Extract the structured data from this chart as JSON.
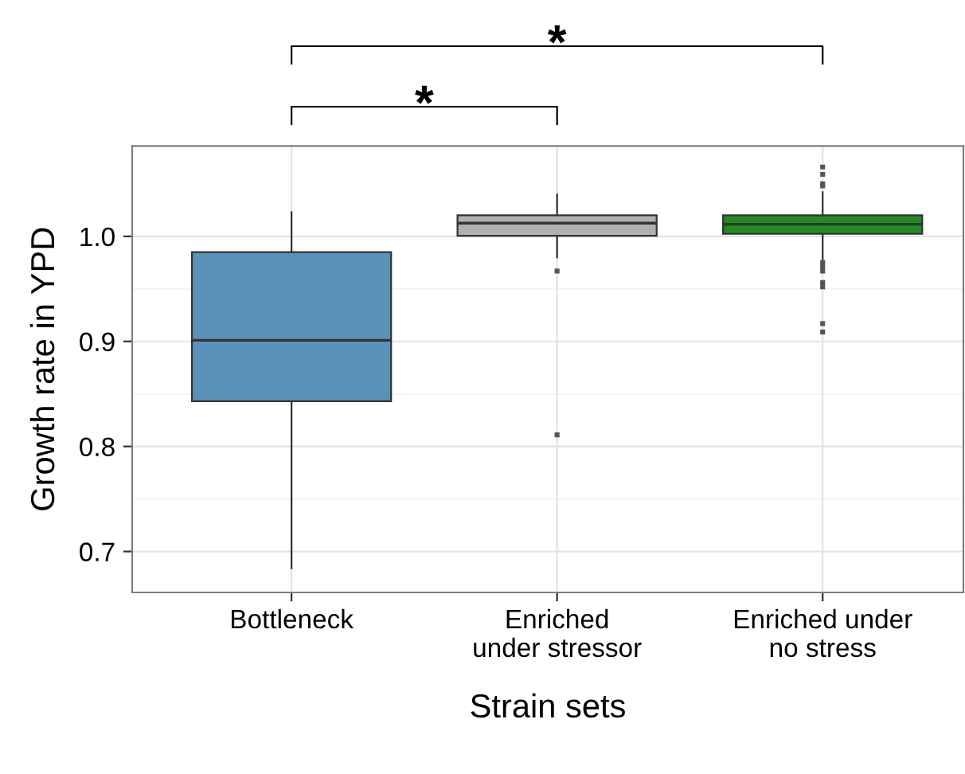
{
  "chart_data": {
    "type": "box",
    "xlabel": "Strain sets",
    "ylabel": "Growth rate in YPD",
    "categories": [
      "Bottleneck",
      "Enriched\nunder stressor",
      "Enriched under\nno stress"
    ],
    "colors": [
      "#5a91b8",
      "#b0b0b0",
      "#228b22"
    ],
    "boxes": [
      {
        "low": 0.684,
        "q1": 0.843,
        "median": 0.901,
        "q3": 0.985,
        "high": 1.023
      },
      {
        "low": 0.98,
        "q1": 1.0005,
        "median": 1.0126,
        "q3": 1.02,
        "high": 1.04,
        "outliers": [
          0.967,
          0.811
        ]
      },
      {
        "low": 0.978,
        "q1": 1.0025,
        "median": 1.0115,
        "q3": 1.02,
        "high": 1.042,
        "outliers": [
          1.066,
          1.059,
          1.05,
          1.048,
          0.975,
          0.971,
          0.967,
          0.956,
          0.952,
          0.917,
          0.909
        ]
      }
    ],
    "ylim": [
      0.661,
      1.086
    ],
    "yticks": [
      0.7,
      0.8,
      0.9,
      {
        "value": 1.0,
        "label": "1.0"
      }
    ],
    "grid": true,
    "annotations": [
      "*",
      "*"
    ]
  }
}
